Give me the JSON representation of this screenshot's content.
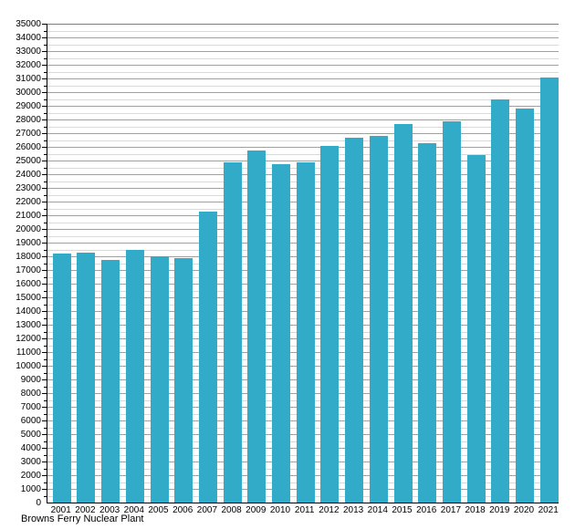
{
  "chart_data": {
    "type": "bar",
    "title": "",
    "xlabel": "",
    "ylabel": "",
    "footnote": "Browns Ferry Nuclear Plant",
    "categories": [
      "2001",
      "2002",
      "2003",
      "2004",
      "2005",
      "2006",
      "2007",
      "2008",
      "2009",
      "2010",
      "2011",
      "2012",
      "2013",
      "2014",
      "2015",
      "2016",
      "2017",
      "2018",
      "2019",
      "2020",
      "2021"
    ],
    "values": [
      18200,
      18250,
      17750,
      18500,
      18000,
      17900,
      21250,
      24900,
      25750,
      24750,
      24850,
      26100,
      26700,
      26800,
      27700,
      26250,
      27900,
      25400,
      29500,
      28800,
      31100
    ],
    "ylim": [
      0,
      35000
    ],
    "ytick_step": 1000,
    "minor_tick_step": 500,
    "ytick_labels": [
      "0",
      "1000",
      "2000",
      "3000",
      "4000",
      "5000",
      "6000",
      "7000",
      "8000",
      "9000",
      "10000",
      "11000",
      "12000",
      "13000",
      "14000",
      "15000",
      "16000",
      "17000",
      "18000",
      "19000",
      "20000",
      "21000",
      "22000",
      "23000",
      "24000",
      "25000",
      "26000",
      "27000",
      "28000",
      "29000",
      "30000",
      "31000",
      "32000",
      "33000",
      "34000",
      "35000"
    ],
    "grid": "horizontal, major and minor lines",
    "legend": "none",
    "bar_color": "#31abc7",
    "major_grid_color": "#a0a0a0",
    "minor_grid_color": "#d9d9d9",
    "axis_color": "#000000"
  }
}
